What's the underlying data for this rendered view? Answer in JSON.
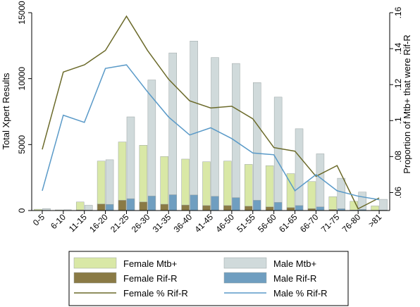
{
  "chart_data": {
    "type": "bar",
    "categories": [
      "0-5",
      "6-10",
      "11-15",
      "16-20",
      "21-25",
      "26-30",
      "31-35",
      "36-40",
      "41-45",
      "46-50",
      "51-55",
      "56-60",
      "61-65",
      "66-70",
      "71-75",
      "76-80",
      ">81"
    ],
    "ylabel": "Total Xpert Results",
    "y2label": "Proportion of Mtb+ that were Rif-R",
    "ylim": [
      0,
      15000
    ],
    "y2lim": [
      0.05,
      0.16
    ],
    "yticks": [
      "0",
      "5000",
      "10000",
      "15000"
    ],
    "y2ticks": [
      ".06",
      ".08",
      ".1",
      ".12",
      ".14",
      ".16"
    ],
    "grid": false,
    "legend_position": "bottom",
    "series": [
      {
        "name": "Female Mtb+",
        "kind": "bar",
        "axis": "left",
        "color": "#d9e8a6",
        "values": [
          100,
          50,
          650,
          3750,
          5200,
          4950,
          4100,
          3900,
          3700,
          3750,
          3500,
          3400,
          2800,
          2200,
          1050,
          700,
          350
        ]
      },
      {
        "name": "Male Mtb+",
        "kind": "bar",
        "axis": "left",
        "color": "#d0dadb",
        "values": [
          150,
          60,
          400,
          3850,
          7100,
          9900,
          11950,
          12850,
          11600,
          11150,
          9700,
          8600,
          6200,
          4300,
          2450,
          1400,
          850
        ]
      },
      {
        "name": "Female Rif-R",
        "kind": "bar",
        "axis": "left",
        "color": "#8a7a45",
        "values": [
          10,
          5,
          50,
          500,
          780,
          650,
          480,
          420,
          380,
          380,
          330,
          280,
          230,
          150,
          80,
          40,
          20
        ]
      },
      {
        "name": "Male Rif-R",
        "kind": "bar",
        "axis": "left",
        "color": "#6f9ec0",
        "values": [
          15,
          8,
          40,
          470,
          900,
          1100,
          1200,
          1180,
          1080,
          980,
          780,
          620,
          380,
          280,
          140,
          80,
          40
        ]
      },
      {
        "name": "Female % Rif-R",
        "kind": "line",
        "axis": "right",
        "color": "#6b6a2a",
        "values": [
          0.084,
          0.127,
          0.131,
          0.139,
          0.158,
          0.139,
          0.123,
          0.111,
          0.107,
          0.108,
          0.101,
          0.085,
          0.083,
          0.069,
          0.075,
          0.051,
          0.057
        ]
      },
      {
        "name": "Male % Rif-R",
        "kind": "line",
        "axis": "right",
        "color": "#5a9ac8",
        "values": [
          0.061,
          0.103,
          0.099,
          0.129,
          0.131,
          0.116,
          0.102,
          0.092,
          0.096,
          0.09,
          0.082,
          0.081,
          0.061,
          0.07,
          0.061,
          0.058,
          0.056
        ]
      }
    ]
  }
}
